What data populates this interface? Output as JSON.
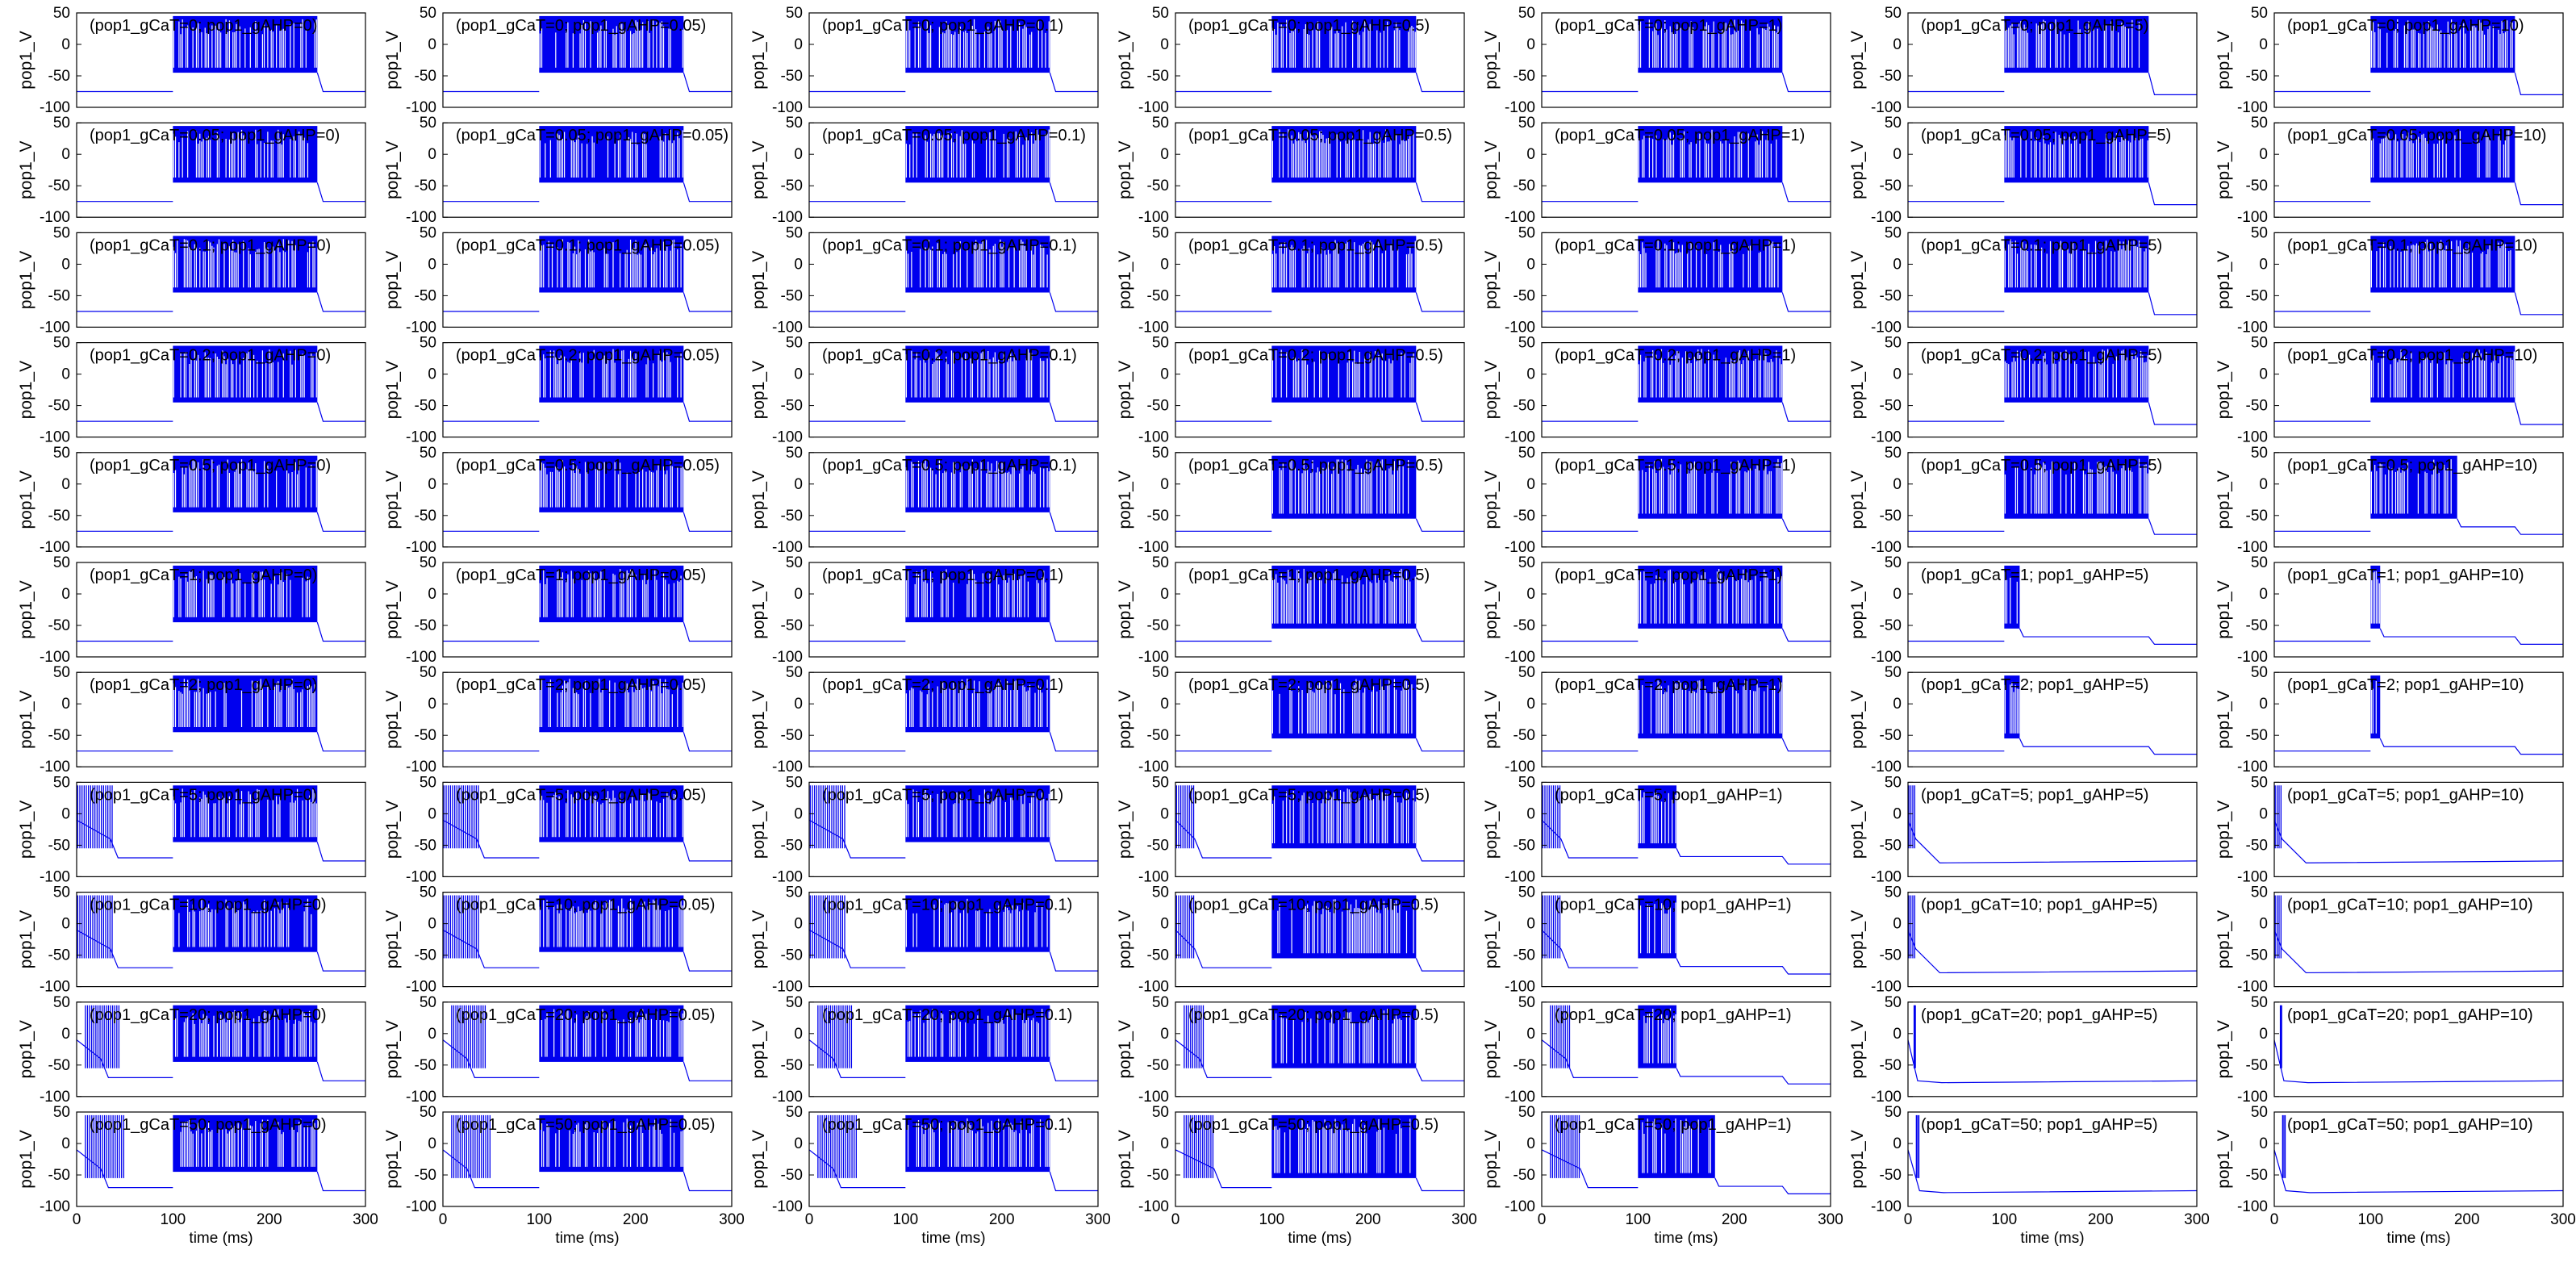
{
  "chart_data": {
    "type": "line",
    "layout": "small-multiples grid",
    "rows": 11,
    "cols": 7,
    "series_color": "#0000ee",
    "xlabel": "time (ms)",
    "ylabel": "pop1_V",
    "xlim": [
      0,
      300
    ],
    "ylim": [
      -100,
      50
    ],
    "xticks": [
      0,
      100,
      200,
      300
    ],
    "yticks": [
      50,
      0,
      -50,
      -100
    ],
    "gCaT_values": [
      "0",
      "0.05",
      "0.1",
      "0.2",
      "0.5",
      "1",
      "2",
      "5",
      "10",
      "20",
      "50"
    ],
    "gAHP_values": [
      "0",
      "0.05",
      "0.1",
      "0.5",
      "1",
      "5",
      "10"
    ],
    "stimulus_window_ms": [
      100,
      250
    ],
    "resting_potential_mV": -75,
    "panel_titles": [
      [
        "(pop1_gCaT=0; pop1_gAHP=0)",
        "(pop1_gCaT=0; pop1_gAHP=0.05)",
        "(pop1_gCaT=0; pop1_gAHP=0.1)",
        "(pop1_gCaT=0; pop1_gAHP=0.5)",
        "(pop1_gCaT=0; pop1_gAHP=1)",
        "(pop1_gCaT=0; pop1_gAHP=5)",
        "(pop1_gCaT=0; pop1_gAHP=10)"
      ],
      [
        "(pop1_gCaT=0.05; pop1_gAHP=0)",
        "(pop1_gCaT=0.05; pop1_gAHP=0.05)",
        "(pop1_gCaT=0.05; pop1_gAHP=0.1)",
        "(pop1_gCaT=0.05; pop1_gAHP=0.5)",
        "(pop1_gCaT=0.05; pop1_gAHP=1)",
        "(pop1_gCaT=0.05; pop1_gAHP=5)",
        "(pop1_gCaT=0.05; pop1_gAHP=10)"
      ],
      [
        "(pop1_gCaT=0.1; pop1_gAHP=0)",
        "(pop1_gCaT=0.1; pop1_gAHP=0.05)",
        "(pop1_gCaT=0.1; pop1_gAHP=0.1)",
        "(pop1_gCaT=0.1; pop1_gAHP=0.5)",
        "(pop1_gCaT=0.1; pop1_gAHP=1)",
        "(pop1_gCaT=0.1; pop1_gAHP=5)",
        "(pop1_gCaT=0.1; pop1_gAHP=10)"
      ],
      [
        "(pop1_gCaT=0.2; pop1_gAHP=0)",
        "(pop1_gCaT=0.2; pop1_gAHP=0.05)",
        "(pop1_gCaT=0.2; pop1_gAHP=0.1)",
        "(pop1_gCaT=0.2; pop1_gAHP=0.5)",
        "(pop1_gCaT=0.2; pop1_gAHP=1)",
        "(pop1_gCaT=0.2; pop1_gAHP=5)",
        "(pop1_gCaT=0.2; pop1_gAHP=10)"
      ],
      [
        "(pop1_gCaT=0.5; pop1_gAHP=0)",
        "(pop1_gCaT=0.5; pop1_gAHP=0.05)",
        "(pop1_gCaT=0.5; pop1_gAHP=0.1)",
        "(pop1_gCaT=0.5; pop1_gAHP=0.5)",
        "(pop1_gCaT=0.5; pop1_gAHP=1)",
        "(pop1_gCaT=0.5; pop1_gAHP=5)",
        "(pop1_gCaT=0.5; pop1_gAHP=10)"
      ],
      [
        "(pop1_gCaT=1; pop1_gAHP=0)",
        "(pop1_gCaT=1; pop1_gAHP=0.05)",
        "(pop1_gCaT=1; pop1_gAHP=0.1)",
        "(pop1_gCaT=1; pop1_gAHP=0.5)",
        "(pop1_gCaT=1; pop1_gAHP=1)",
        "(pop1_gCaT=1; pop1_gAHP=5)",
        "(pop1_gCaT=1; pop1_gAHP=10)"
      ],
      [
        "(pop1_gCaT=2; pop1_gAHP=0)",
        "(pop1_gCaT=2; pop1_gAHP=0.05)",
        "(pop1_gCaT=2; pop1_gAHP=0.1)",
        "(pop1_gCaT=2; pop1_gAHP=0.5)",
        "(pop1_gCaT=2; pop1_gAHP=1)",
        "(pop1_gCaT=2; pop1_gAHP=5)",
        "(pop1_gCaT=2; pop1_gAHP=10)"
      ],
      [
        "(pop1_gCaT=5; pop1_gAHP=0)",
        "(pop1_gCaT=5; pop1_gAHP=0.05)",
        "(pop1_gCaT=5; pop1_gAHP=0.1)",
        "(pop1_gCaT=5; pop1_gAHP=0.5)",
        "(pop1_gCaT=5; pop1_gAHP=1)",
        "(pop1_gCaT=5; pop1_gAHP=5)",
        "(pop1_gCaT=5; pop1_gAHP=10)"
      ],
      [
        "(pop1_gCaT=10; pop1_gAHP=0)",
        "(pop1_gCaT=10; pop1_gAHP=0.05)",
        "(pop1_gCaT=10; pop1_gAHP=0.1)",
        "(pop1_gCaT=10; pop1_gAHP=0.5)",
        "(pop1_gCaT=10; pop1_gAHP=1)",
        "(pop1_gCaT=10; pop1_gAHP=5)",
        "(pop1_gCaT=10; pop1_gAHP=10)"
      ],
      [
        "(pop1_gCaT=20; pop1_gAHP=0)",
        "(pop1_gCaT=20; pop1_gAHP=0.05)",
        "(pop1_gCaT=20; pop1_gAHP=0.1)",
        "(pop1_gCaT=20; pop1_gAHP=0.5)",
        "(pop1_gCaT=20; pop1_gAHP=1)",
        "(pop1_gCaT=20; pop1_gAHP=5)",
        "(pop1_gCaT=20; pop1_gAHP=10)"
      ],
      [
        "(pop1_gCaT=50; pop1_gAHP=0)",
        "(pop1_gCaT=50; pop1_gAHP=0.05)",
        "(pop1_gCaT=50; pop1_gAHP=0.1)",
        "(pop1_gCaT=50; pop1_gAHP=0.5)",
        "(pop1_gCaT=50; pop1_gAHP=1)",
        "(pop1_gCaT=50; pop1_gAHP=5)",
        "(pop1_gCaT=50; pop1_gAHP=10)"
      ]
    ]
  }
}
